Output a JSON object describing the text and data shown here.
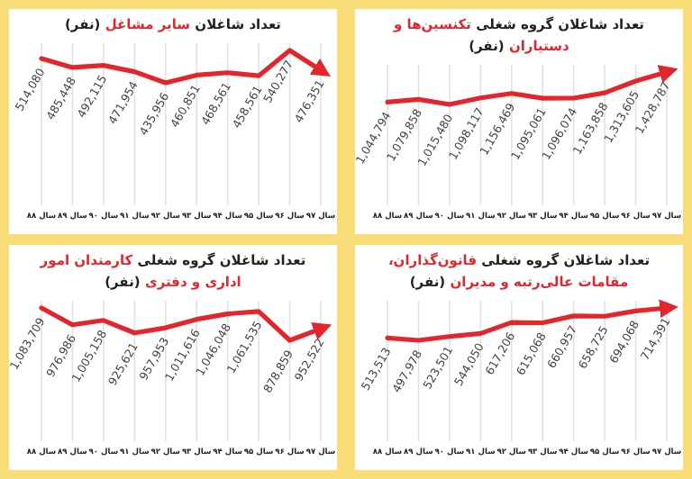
{
  "chart_data": [
    {
      "type": "line",
      "title": "تعداد شاغلان **سایر مشاغل** (نفر)",
      "categories": [
        "سال ۸۸",
        "سال ۸۹",
        "سال ۹۰",
        "سال ۹۱",
        "سال ۹۲",
        "سال ۹۳",
        "سال ۹۴",
        "سال ۹۵",
        "سال ۹۶",
        "سال ۹۷"
      ],
      "grid": "x",
      "series": [
        {
          "color": "#e3262e",
          "values": [
            514080,
            485448,
            492115,
            471954,
            435956,
            460851,
            468561,
            458561,
            540277,
            476351
          ],
          "value_labels": [
            "514,080",
            "485,448",
            "492,115",
            "471,954",
            "435,956",
            "460,851",
            "468,561",
            "458,561",
            "540,277",
            "476,351"
          ]
        }
      ]
    },
    {
      "type": "line",
      "title": "تعداد شاغلان گروه شغلی **تکنسین‌ها و دستیاران** (نفر)",
      "categories": [
        "سال ۸۸",
        "سال ۸۹",
        "سال ۹۰",
        "سال ۹۱",
        "سال ۹۲",
        "سال ۹۳",
        "سال ۹۴",
        "سال ۹۵",
        "سال ۹۶",
        "سال ۹۷"
      ],
      "grid": "x",
      "series": [
        {
          "color": "#e3262e",
          "values": [
            1044794,
            1079858,
            1015480,
            1098117,
            1156469,
            1095061,
            1096074,
            1163858,
            1313605,
            1428787
          ],
          "value_labels": [
            "1,044,794",
            "1,079,858",
            "1,015,480",
            "1,098,117",
            "1,156,469",
            "1,095,061",
            "1,096,074",
            "1,163,858",
            "1,313,605",
            "1,428,787"
          ]
        }
      ]
    },
    {
      "type": "line",
      "title": "تعداد شاغلان گروه شغلی **کارمندان امور اداری و دفتری** (نفر)",
      "categories": [
        "سال ۸۸",
        "سال ۸۹",
        "سال ۹۰",
        "سال ۹۱",
        "سال ۹۲",
        "سال ۹۳",
        "سال ۹۴",
        "سال ۹۵",
        "سال ۹۶",
        "سال ۹۷"
      ],
      "grid": "x",
      "series": [
        {
          "color": "#e3262e",
          "values": [
            1083709,
            976986,
            1005158,
            925621,
            957953,
            1011616,
            1046048,
            1061535,
            878859,
            952522
          ],
          "value_labels": [
            "1,083,709",
            "976,986",
            "1,005,158",
            "925,621",
            "957,953",
            "1,011,616",
            "1,046,048",
            "1,061,535",
            "878,859",
            "952,522"
          ]
        }
      ]
    },
    {
      "type": "line",
      "title": "تعداد شاغلان گروه شغلی **قانون‌گذاران، مقامات عالی‌رتبه و مدیران** (نفر)",
      "categories": [
        "سال ۸۸",
        "سال ۸۹",
        "سال ۹۰",
        "سال ۹۱",
        "سال ۹۲",
        "سال ۹۳",
        "سال ۹۴",
        "سال ۹۵",
        "سال ۹۶",
        "سال ۹۷"
      ],
      "grid": "x",
      "series": [
        {
          "color": "#e3262e",
          "values": [
            513513,
            497978,
            523501,
            544050,
            617206,
            615068,
            660957,
            658725,
            694068,
            714391
          ],
          "value_labels": [
            "513,513",
            "497,978",
            "523,501",
            "544,050",
            "617,206",
            "615,068",
            "660,957",
            "658,725",
            "694,068",
            "714,391"
          ]
        }
      ]
    }
  ]
}
